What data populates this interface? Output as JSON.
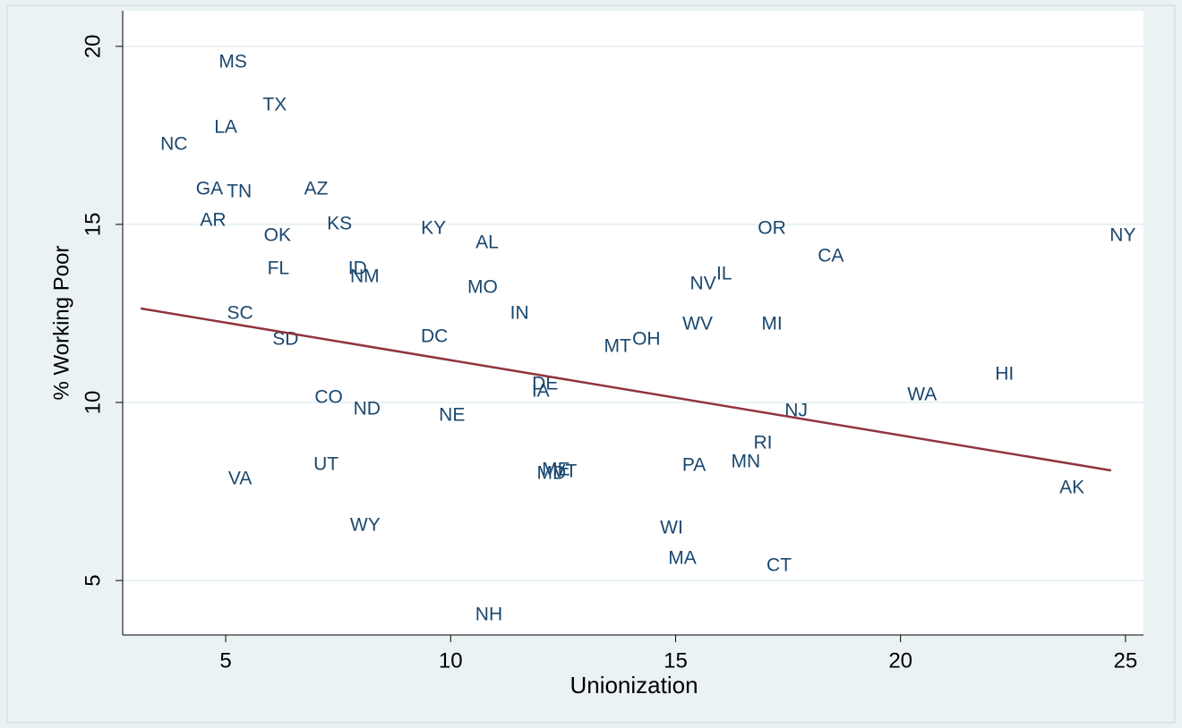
{
  "chart_data": {
    "type": "scatter",
    "xlabel": "Unionization",
    "ylabel": "% Working Poor",
    "xlim": [
      2.71,
      25.4
    ],
    "ylim": [
      3.47,
      21.0
    ],
    "xticks": [
      5,
      10,
      15,
      20,
      25
    ],
    "yticks": [
      5,
      10,
      15,
      20
    ],
    "grid": true,
    "series": [
      {
        "color": "#1a476f",
        "labels": [
          "MS",
          "TX",
          "LA",
          "NC",
          "GA",
          "TN",
          "AZ",
          "AR",
          "KS",
          "KY",
          "OK",
          "AL",
          "OR",
          "NY",
          "CA",
          "FL",
          "ID",
          "NM",
          "IL",
          "NV",
          "MO",
          "SC",
          "IN",
          "WV",
          "MI",
          "DC",
          "SD",
          "OH",
          "MT",
          "HI",
          "DE",
          "IA",
          "WA",
          "CO",
          "ND",
          "NJ",
          "NE",
          "RI",
          "UT",
          "MN",
          "PA",
          "ME",
          "VT",
          "MD",
          "VA",
          "AK",
          "WY",
          "WI",
          "MA",
          "CT",
          "NH"
        ],
        "x": [
          5.16,
          6.09,
          5.0,
          3.85,
          4.64,
          5.3,
          7.01,
          4.72,
          7.53,
          9.62,
          6.15,
          10.81,
          17.14,
          24.94,
          18.45,
          6.17,
          7.93,
          8.09,
          16.08,
          15.61,
          10.71,
          5.32,
          11.53,
          15.49,
          17.14,
          9.64,
          6.33,
          14.35,
          13.71,
          22.31,
          12.1,
          12.0,
          20.48,
          7.29,
          8.14,
          17.68,
          10.03,
          16.94,
          7.23,
          16.56,
          15.41,
          12.34,
          12.54,
          12.24,
          5.32,
          23.81,
          8.1,
          14.91,
          15.15,
          17.3,
          10.85
        ],
        "values": [
          19.55,
          18.34,
          17.71,
          17.24,
          15.98,
          15.9,
          15.98,
          15.1,
          15.0,
          14.87,
          14.67,
          14.47,
          14.87,
          14.67,
          14.1,
          13.74,
          13.74,
          13.52,
          13.59,
          13.32,
          13.22,
          12.49,
          12.49,
          12.19,
          12.19,
          11.83,
          11.76,
          11.76,
          11.56,
          10.78,
          10.5,
          10.3,
          10.2,
          10.13,
          9.8,
          9.75,
          9.62,
          8.84,
          8.24,
          8.32,
          8.22,
          8.09,
          8.04,
          7.99,
          7.84,
          7.59,
          6.53,
          6.46,
          5.6,
          5.4,
          4.02
        ]
      }
    ],
    "fit_line": {
      "x": [
        3.11,
        24.68
      ],
      "values": [
        12.64,
        8.09
      ],
      "color": "#90353b"
    }
  }
}
